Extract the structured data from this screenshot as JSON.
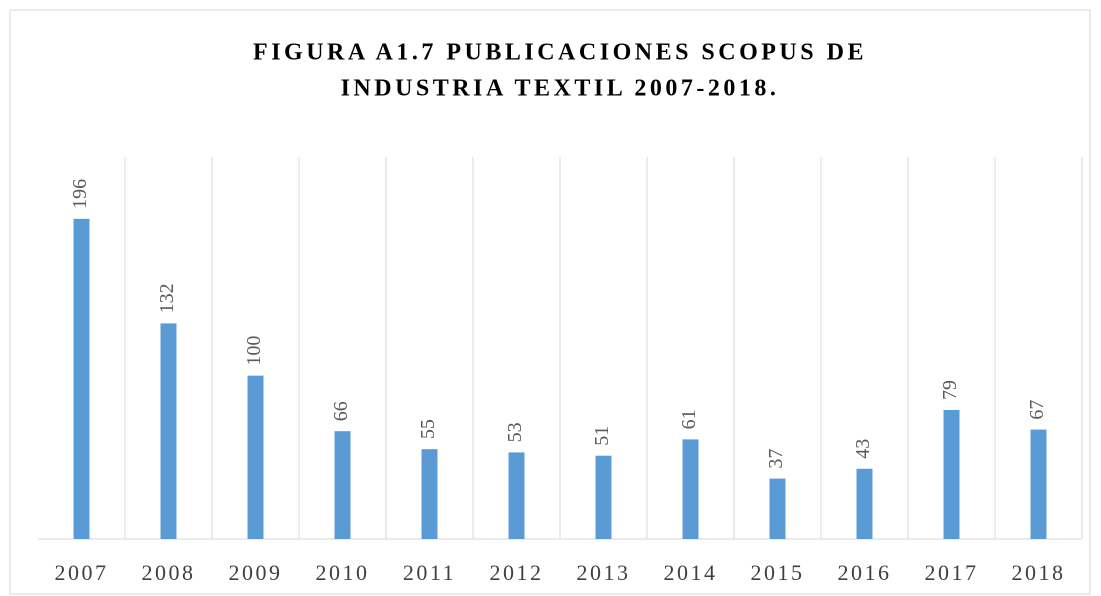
{
  "chart_data": {
    "type": "bar",
    "title": [
      "FIGURA A1.7 PUBLICACIONES SCOPUS DE",
      "INDUSTRIA TEXTIL 2007-2018."
    ],
    "categories": [
      "2007",
      "2008",
      "2009",
      "2010",
      "2011",
      "2012",
      "2013",
      "2014",
      "2015",
      "2016",
      "2017",
      "2018"
    ],
    "values": [
      196,
      132,
      100,
      66,
      55,
      53,
      51,
      61,
      37,
      43,
      79,
      67
    ],
    "color": "#5b9bd5",
    "ylim": [
      0,
      240
    ],
    "grid": true
  }
}
